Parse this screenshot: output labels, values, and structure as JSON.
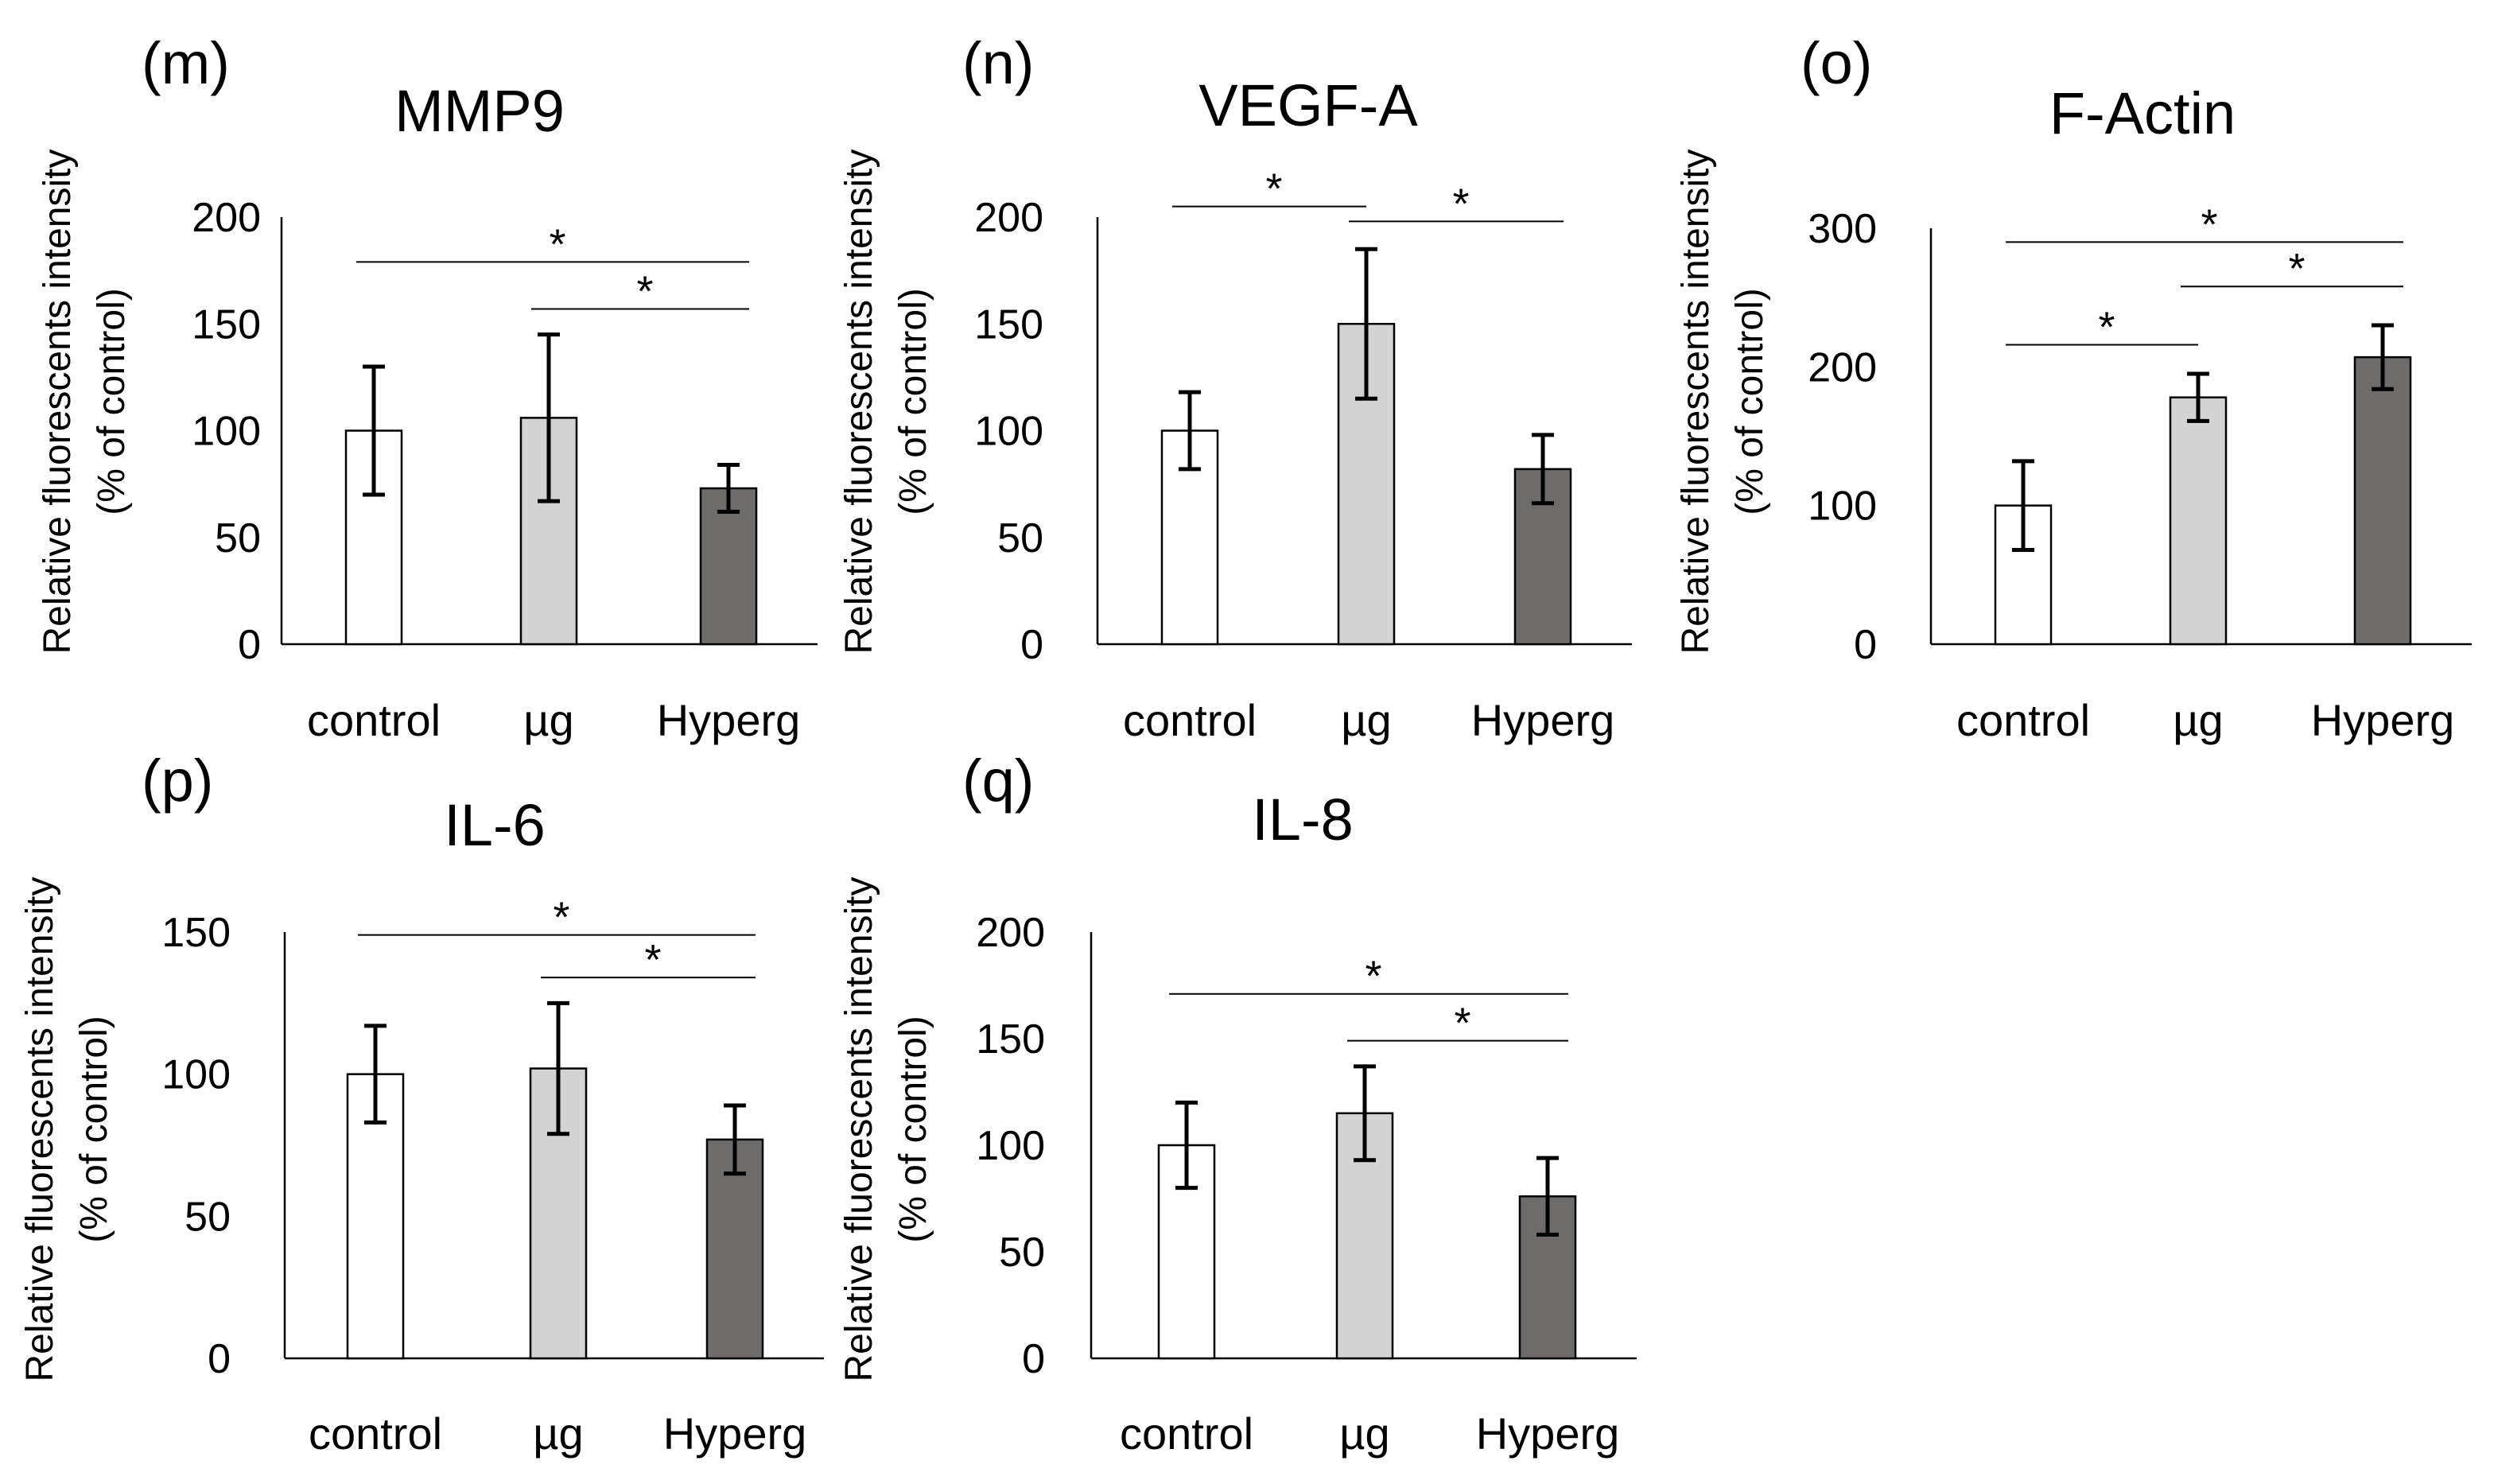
{
  "chart_data": [
    {
      "panel": "(m)",
      "title": "MMP9",
      "type": "bar",
      "categories": [
        "control",
        "µg",
        "Hyperg"
      ],
      "values": [
        100,
        106,
        73
      ],
      "errors": [
        30,
        39,
        11
      ],
      "ylabel": "Relative fluorescents intensity",
      "ylabel2": "(% of control)",
      "yticks": [
        0,
        50,
        100,
        150,
        200
      ],
      "ylim": [
        0,
        200
      ],
      "colors": [
        "#ffffff",
        "#d3d3d3",
        "#706b6b"
      ],
      "significance": [
        {
          "from": 0,
          "to": 2,
          "label": "*",
          "y": 179
        },
        {
          "from": 1,
          "to": 2,
          "label": "*",
          "y": 157
        }
      ]
    },
    {
      "panel": "(n)",
      "title": "VEGF-A",
      "type": "bar",
      "categories": [
        "control",
        "µg",
        "Hyperg"
      ],
      "values": [
        100,
        150,
        82
      ],
      "errors": [
        18,
        35,
        16
      ],
      "ylabel": "Relative fluorescents intensity",
      "ylabel2": "(% of control)",
      "yticks": [
        0,
        50,
        100,
        150,
        200
      ],
      "ylim": [
        0,
        200
      ],
      "colors": [
        "#ffffff",
        "#d3d3d3",
        "#706b6b"
      ],
      "significance": [
        {
          "from": 0,
          "to": 1,
          "label": "*",
          "y": 205
        },
        {
          "from": 1,
          "to": 2,
          "label": "*",
          "y": 198
        }
      ]
    },
    {
      "panel": "(o)",
      "title": "F-Actin",
      "type": "bar",
      "categories": [
        "control",
        "µg",
        "Hyperg"
      ],
      "values": [
        100,
        178,
        207
      ],
      "errors": [
        32,
        17,
        23
      ],
      "ylabel": "Relative fluorescents intensity",
      "ylabel2": "(% of control)",
      "yticks": [
        0,
        100,
        200,
        300
      ],
      "ylim": [
        0,
        300
      ],
      "colors": [
        "#ffffff",
        "#d3d3d3",
        "#706b6b"
      ],
      "significance": [
        {
          "from": 0,
          "to": 2,
          "label": "*",
          "y": 290
        },
        {
          "from": 1,
          "to": 2,
          "label": "*",
          "y": 258
        },
        {
          "from": 0,
          "to": 1,
          "label": "*",
          "y": 216
        }
      ]
    },
    {
      "panel": "(p)",
      "title": "IL-6",
      "type": "bar",
      "categories": [
        "control",
        "µg",
        "Hyperg"
      ],
      "values": [
        100,
        102,
        77
      ],
      "errors": [
        17,
        23,
        12
      ],
      "ylabel": "Relative fluorescents intensity",
      "ylabel2": "(% of control)",
      "yticks": [
        0,
        50,
        100,
        150
      ],
      "ylim": [
        0,
        150
      ],
      "colors": [
        "#ffffff",
        "#d3d3d3",
        "#706b6b"
      ],
      "significance": [
        {
          "from": 0,
          "to": 2,
          "label": "*",
          "y": 149
        },
        {
          "from": 1,
          "to": 2,
          "label": "*",
          "y": 134
        }
      ]
    },
    {
      "panel": "(q)",
      "title": "IL-8",
      "type": "bar",
      "categories": [
        "control",
        "µg",
        "Hyperg"
      ],
      "values": [
        100,
        115,
        76
      ],
      "errors": [
        20,
        22,
        18
      ],
      "ylabel": "Relative fluorescents intensity",
      "ylabel2": "(% of control)",
      "yticks": [
        0,
        50,
        100,
        150,
        200
      ],
      "ylim": [
        0,
        200
      ],
      "colors": [
        "#ffffff",
        "#d3d3d3",
        "#706b6b"
      ],
      "significance": [
        {
          "from": 0,
          "to": 2,
          "label": "*",
          "y": 171
        },
        {
          "from": 1,
          "to": 2,
          "label": "*",
          "y": 149
        }
      ]
    }
  ]
}
